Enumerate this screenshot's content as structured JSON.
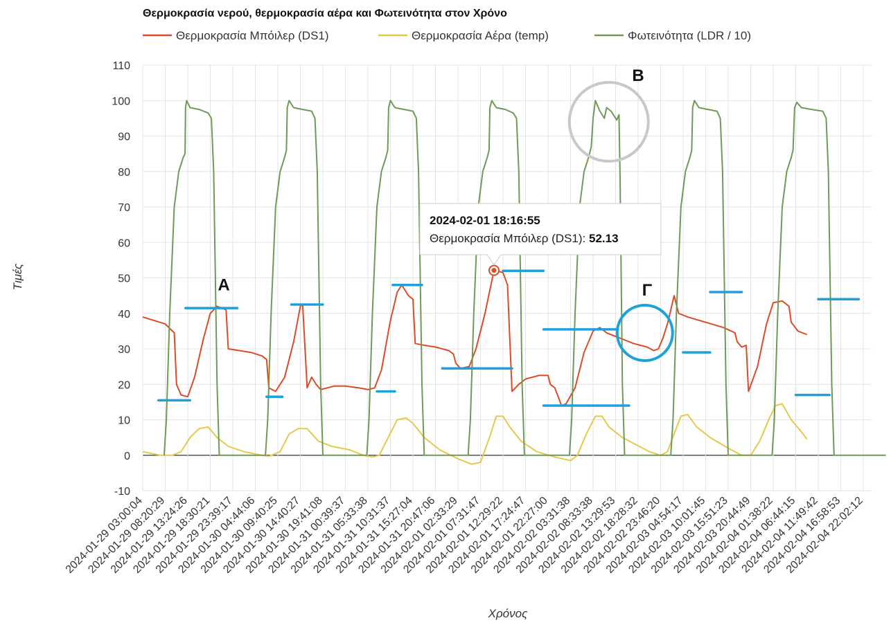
{
  "chart_data": {
    "type": "line",
    "title": "Θερμοκρασία νερού, θερμοκρασία αέρα και Φωτεινότητα στον Χρόνο",
    "xlabel": "Χρόνος",
    "ylabel": "Τιμές",
    "ylim": [
      -10,
      110
    ],
    "yticks": [
      -10,
      0,
      10,
      20,
      30,
      40,
      50,
      60,
      70,
      80,
      90,
      100,
      110
    ],
    "grid": true,
    "legend_position": "top",
    "x_ticks": [
      "2024-01-29 03:00:04",
      "2024-01-29 08:20:29",
      "2024-01-29 13:24:26",
      "2024-01-29 18:30:21",
      "2024-01-29 23:39:17",
      "2024-01-30 04:44:06",
      "2024-01-30 09:40:25",
      "2024-01-30 14:40:27",
      "2024-01-30 19:41:08",
      "2024-01-31 00:39:37",
      "2024-01-31 05:33:38",
      "2024-01-31 10:31:37",
      "2024-01-31 15:27:04",
      "2024-01-31 20:47:06",
      "2024-02-01 02:33:29",
      "2024-02-01 07:31:47",
      "2024-02-01 12:29:22",
      "2024-02-01 17:24:47",
      "2024-02-01 22:27:00",
      "2024-02-02 03:31:38",
      "2024-02-02 08:33:38",
      "2024-02-02 13:29:53",
      "2024-02-02 18:28:32",
      "2024-02-02 23:46:20",
      "2024-02-03 04:54:17",
      "2024-02-03 10:01:45",
      "2024-02-03 15:51:23",
      "2024-02-03 20:44:49",
      "2024-02-04 01:38:22",
      "2024-02-04 06:44:15",
      "2024-02-04 11:49:42",
      "2024-02-04 16:58:53",
      "2024-02-04 22:02:12"
    ],
    "series": [
      {
        "name": "Θερμοκρασία Μπόιλερ (DS1)",
        "color": "#dc4b26",
        "points": [
          [
            0,
            39
          ],
          [
            1,
            37
          ],
          [
            1.4,
            34.5
          ],
          [
            1.5,
            20
          ],
          [
            1.7,
            17
          ],
          [
            2.0,
            16.5
          ],
          [
            2.3,
            22
          ],
          [
            2.7,
            33
          ],
          [
            3.0,
            40
          ],
          [
            3.3,
            42
          ],
          [
            3.7,
            41
          ],
          [
            3.8,
            30
          ],
          [
            4.3,
            29.5
          ],
          [
            4.8,
            29
          ],
          [
            5.3,
            28
          ],
          [
            5.5,
            27
          ],
          [
            5.6,
            19
          ],
          [
            5.9,
            18
          ],
          [
            6.3,
            22
          ],
          [
            6.7,
            32
          ],
          [
            7.0,
            42
          ],
          [
            7.1,
            42.5
          ],
          [
            7.3,
            19
          ],
          [
            7.5,
            22
          ],
          [
            7.7,
            20
          ],
          [
            7.9,
            18.5
          ],
          [
            8.5,
            19.5
          ],
          [
            9.0,
            19.5
          ],
          [
            9.6,
            19
          ],
          [
            10.0,
            18.5
          ],
          [
            10.3,
            19
          ],
          [
            10.6,
            24
          ],
          [
            11.0,
            38
          ],
          [
            11.3,
            46
          ],
          [
            11.5,
            48
          ],
          [
            11.8,
            45
          ],
          [
            12.0,
            44
          ],
          [
            12.1,
            31.5
          ],
          [
            12.5,
            31
          ],
          [
            13.0,
            30.5
          ],
          [
            13.6,
            29.5
          ],
          [
            13.8,
            28.5
          ],
          [
            13.9,
            26
          ],
          [
            14.1,
            24.5
          ],
          [
            14.5,
            25
          ],
          [
            14.8,
            30
          ],
          [
            15.2,
            40
          ],
          [
            15.6,
            52.13
          ],
          [
            16.0,
            51.5
          ],
          [
            16.2,
            48
          ],
          [
            16.4,
            18
          ],
          [
            16.7,
            20
          ],
          [
            17.0,
            21.5
          ],
          [
            17.6,
            22.5
          ],
          [
            18.0,
            22.5
          ],
          [
            18.1,
            20
          ],
          [
            18.3,
            19
          ],
          [
            18.6,
            14
          ],
          [
            18.8,
            14.5
          ],
          [
            19.2,
            19
          ],
          [
            19.6,
            29
          ],
          [
            20.0,
            35
          ],
          [
            20.3,
            36
          ],
          [
            20.6,
            34.5
          ],
          [
            21.2,
            33
          ],
          [
            21.8,
            31.5
          ],
          [
            22.4,
            30.5
          ],
          [
            22.7,
            29.5
          ],
          [
            22.9,
            30
          ],
          [
            23.1,
            33
          ],
          [
            23.3,
            37
          ],
          [
            23.6,
            45
          ],
          [
            23.8,
            40
          ],
          [
            24.2,
            39
          ],
          [
            25.0,
            37.5
          ],
          [
            25.8,
            36
          ],
          [
            26.3,
            34.5
          ],
          [
            26.4,
            32
          ],
          [
            26.6,
            30.5
          ],
          [
            26.8,
            31
          ],
          [
            26.9,
            18
          ],
          [
            27.3,
            25
          ],
          [
            27.7,
            37
          ],
          [
            28.0,
            43
          ],
          [
            28.4,
            43.5
          ],
          [
            28.7,
            42
          ],
          [
            28.8,
            37.5
          ],
          [
            29.1,
            35
          ],
          [
            29.5,
            34
          ]
        ]
      },
      {
        "name": "Θερμοκρασία Αέρα (temp)",
        "color": "#e6c84a",
        "points": [
          [
            0,
            1
          ],
          [
            0.8,
            0
          ],
          [
            1.3,
            0
          ],
          [
            1.7,
            1
          ],
          [
            2.1,
            5
          ],
          [
            2.5,
            7.5
          ],
          [
            2.9,
            8
          ],
          [
            3.3,
            5
          ],
          [
            3.8,
            2.5
          ],
          [
            4.5,
            1
          ],
          [
            5.3,
            0
          ],
          [
            5.6,
            -0.3
          ],
          [
            6.1,
            1
          ],
          [
            6.5,
            6
          ],
          [
            6.9,
            7.5
          ],
          [
            7.3,
            7.5
          ],
          [
            7.8,
            4
          ],
          [
            8.4,
            2.5
          ],
          [
            9.2,
            1.5
          ],
          [
            9.8,
            0
          ],
          [
            10.2,
            -0.5
          ],
          [
            10.5,
            0
          ],
          [
            10.9,
            5
          ],
          [
            11.3,
            10
          ],
          [
            11.7,
            10.5
          ],
          [
            12.0,
            9
          ],
          [
            12.5,
            5
          ],
          [
            13.2,
            1.5
          ],
          [
            14.0,
            -1
          ],
          [
            14.6,
            -2.5
          ],
          [
            15.0,
            -2
          ],
          [
            15.4,
            5
          ],
          [
            15.7,
            11
          ],
          [
            16.0,
            11
          ],
          [
            16.3,
            8
          ],
          [
            16.8,
            4
          ],
          [
            17.5,
            1
          ],
          [
            18.3,
            -0.5
          ],
          [
            19.0,
            -1.5
          ],
          [
            19.3,
            0
          ],
          [
            19.7,
            6
          ],
          [
            20.1,
            11
          ],
          [
            20.4,
            11
          ],
          [
            20.7,
            8
          ],
          [
            21.3,
            5
          ],
          [
            21.9,
            3
          ],
          [
            22.5,
            1
          ],
          [
            23.0,
            0
          ],
          [
            23.3,
            1
          ],
          [
            23.6,
            6
          ],
          [
            23.9,
            11
          ],
          [
            24.2,
            11.5
          ],
          [
            24.6,
            8
          ],
          [
            25.2,
            5
          ],
          [
            26.0,
            2
          ],
          [
            26.6,
            0
          ],
          [
            27.0,
            0
          ],
          [
            27.4,
            4
          ],
          [
            27.8,
            10
          ],
          [
            28.1,
            14
          ],
          [
            28.4,
            14.5
          ],
          [
            28.8,
            10
          ],
          [
            29.2,
            7
          ],
          [
            29.5,
            4.5
          ]
        ]
      },
      {
        "name": "Φωτεινότητα (LDR / 10)",
        "color": "#6e9a56",
        "points": [
          [
            0.95,
            0
          ],
          [
            1.05,
            10
          ],
          [
            1.2,
            40
          ],
          [
            1.4,
            70
          ],
          [
            1.6,
            80
          ],
          [
            1.8,
            84
          ],
          [
            1.88,
            85
          ],
          [
            1.9,
            98
          ],
          [
            1.95,
            100
          ],
          [
            2.1,
            98
          ],
          [
            2.5,
            97.5
          ],
          [
            2.9,
            96.5
          ],
          [
            3.05,
            95
          ],
          [
            3.15,
            80
          ],
          [
            3.3,
            20
          ],
          [
            3.4,
            0
          ],
          [
            5.45,
            0
          ],
          [
            5.55,
            10
          ],
          [
            5.7,
            40
          ],
          [
            5.9,
            70
          ],
          [
            6.1,
            80
          ],
          [
            6.3,
            84
          ],
          [
            6.38,
            86
          ],
          [
            6.42,
            98
          ],
          [
            6.5,
            100
          ],
          [
            6.7,
            98
          ],
          [
            7.1,
            97.5
          ],
          [
            7.5,
            97
          ],
          [
            7.65,
            95
          ],
          [
            7.75,
            80
          ],
          [
            7.9,
            20
          ],
          [
            8.0,
            0
          ],
          [
            9.95,
            0
          ],
          [
            10.05,
            10
          ],
          [
            10.2,
            40
          ],
          [
            10.4,
            70
          ],
          [
            10.6,
            80
          ],
          [
            10.8,
            84
          ],
          [
            10.88,
            86
          ],
          [
            10.92,
            98
          ],
          [
            11.0,
            100
          ],
          [
            11.2,
            98
          ],
          [
            11.6,
            97.5
          ],
          [
            12.0,
            97
          ],
          [
            12.15,
            95
          ],
          [
            12.25,
            80
          ],
          [
            12.4,
            20
          ],
          [
            12.5,
            0
          ],
          [
            14.45,
            0
          ],
          [
            14.55,
            10
          ],
          [
            14.7,
            40
          ],
          [
            14.9,
            70
          ],
          [
            15.1,
            80
          ],
          [
            15.3,
            84
          ],
          [
            15.38,
            86
          ],
          [
            15.42,
            98
          ],
          [
            15.5,
            100
          ],
          [
            15.7,
            98
          ],
          [
            16.1,
            97.5
          ],
          [
            16.45,
            96.5
          ],
          [
            16.6,
            95
          ],
          [
            16.7,
            80
          ],
          [
            16.85,
            20
          ],
          [
            16.95,
            0
          ],
          [
            18.95,
            0
          ],
          [
            19.05,
            10
          ],
          [
            19.2,
            40
          ],
          [
            19.4,
            70
          ],
          [
            19.6,
            80
          ],
          [
            19.8,
            84
          ],
          [
            19.92,
            87
          ],
          [
            20.0,
            95
          ],
          [
            20.1,
            100
          ],
          [
            20.3,
            97
          ],
          [
            20.5,
            95
          ],
          [
            20.6,
            98
          ],
          [
            20.8,
            97
          ],
          [
            21.05,
            94.5
          ],
          [
            21.15,
            96
          ],
          [
            21.2,
            78
          ],
          [
            21.3,
            20
          ],
          [
            21.4,
            0
          ],
          [
            23.45,
            0
          ],
          [
            23.55,
            10
          ],
          [
            23.7,
            40
          ],
          [
            23.9,
            70
          ],
          [
            24.1,
            80
          ],
          [
            24.3,
            84
          ],
          [
            24.38,
            86
          ],
          [
            24.42,
            98
          ],
          [
            24.5,
            100
          ],
          [
            24.7,
            98
          ],
          [
            25.1,
            97.5
          ],
          [
            25.5,
            97
          ],
          [
            25.65,
            95
          ],
          [
            25.75,
            80
          ],
          [
            25.9,
            20
          ],
          [
            26.0,
            0
          ],
          [
            27.95,
            0
          ],
          [
            28.05,
            10
          ],
          [
            28.2,
            40
          ],
          [
            28.4,
            70
          ],
          [
            28.6,
            80
          ],
          [
            28.8,
            84
          ],
          [
            28.88,
            86
          ],
          [
            28.95,
            98
          ],
          [
            29.05,
            99.5
          ],
          [
            29.25,
            98
          ],
          [
            29.7,
            97.5
          ],
          [
            30.2,
            97
          ],
          [
            30.35,
            95
          ],
          [
            30.45,
            80
          ],
          [
            30.6,
            20
          ],
          [
            30.7,
            0
          ],
          [
            33,
            0
          ]
        ]
      }
    ],
    "annotations": [
      {
        "label": "A",
        "x": 3.6,
        "y": 46.5
      },
      {
        "label": "B",
        "x": 22.0,
        "y": 105.5
      },
      {
        "label": "Γ",
        "x": 22.4,
        "y": 45
      }
    ],
    "tooltip": {
      "title": "2024-02-01 18:16:55",
      "series_label": "Θερμοκρασία Μπόιλερ (DS1): ",
      "value": "52.13",
      "x": 15.6,
      "y": 52.13
    },
    "markers": [
      [
        0.7,
        2.1,
        15.5
      ],
      [
        1.9,
        4.2,
        41.5
      ],
      [
        5.5,
        6.2,
        16.5
      ],
      [
        6.6,
        8.0,
        42.5
      ],
      [
        10.4,
        11.2,
        18
      ],
      [
        11.1,
        12.4,
        48
      ],
      [
        13.3,
        16.4,
        24.5
      ],
      [
        16.0,
        17.8,
        52
      ],
      [
        17.8,
        21.1,
        35.5
      ],
      [
        17.8,
        21.6,
        14
      ],
      [
        24.0,
        25.2,
        29
      ],
      [
        25.2,
        26.6,
        46
      ],
      [
        29.0,
        30.5,
        17
      ],
      [
        30.0,
        31.8,
        44
      ]
    ],
    "marker_color": "#1ea0db",
    "circles": [
      {
        "x": 20.7,
        "y": 94,
        "color": "#c8c8c8"
      },
      {
        "x": 22.3,
        "y": 34.5,
        "color": "#1ea0db"
      }
    ]
  }
}
